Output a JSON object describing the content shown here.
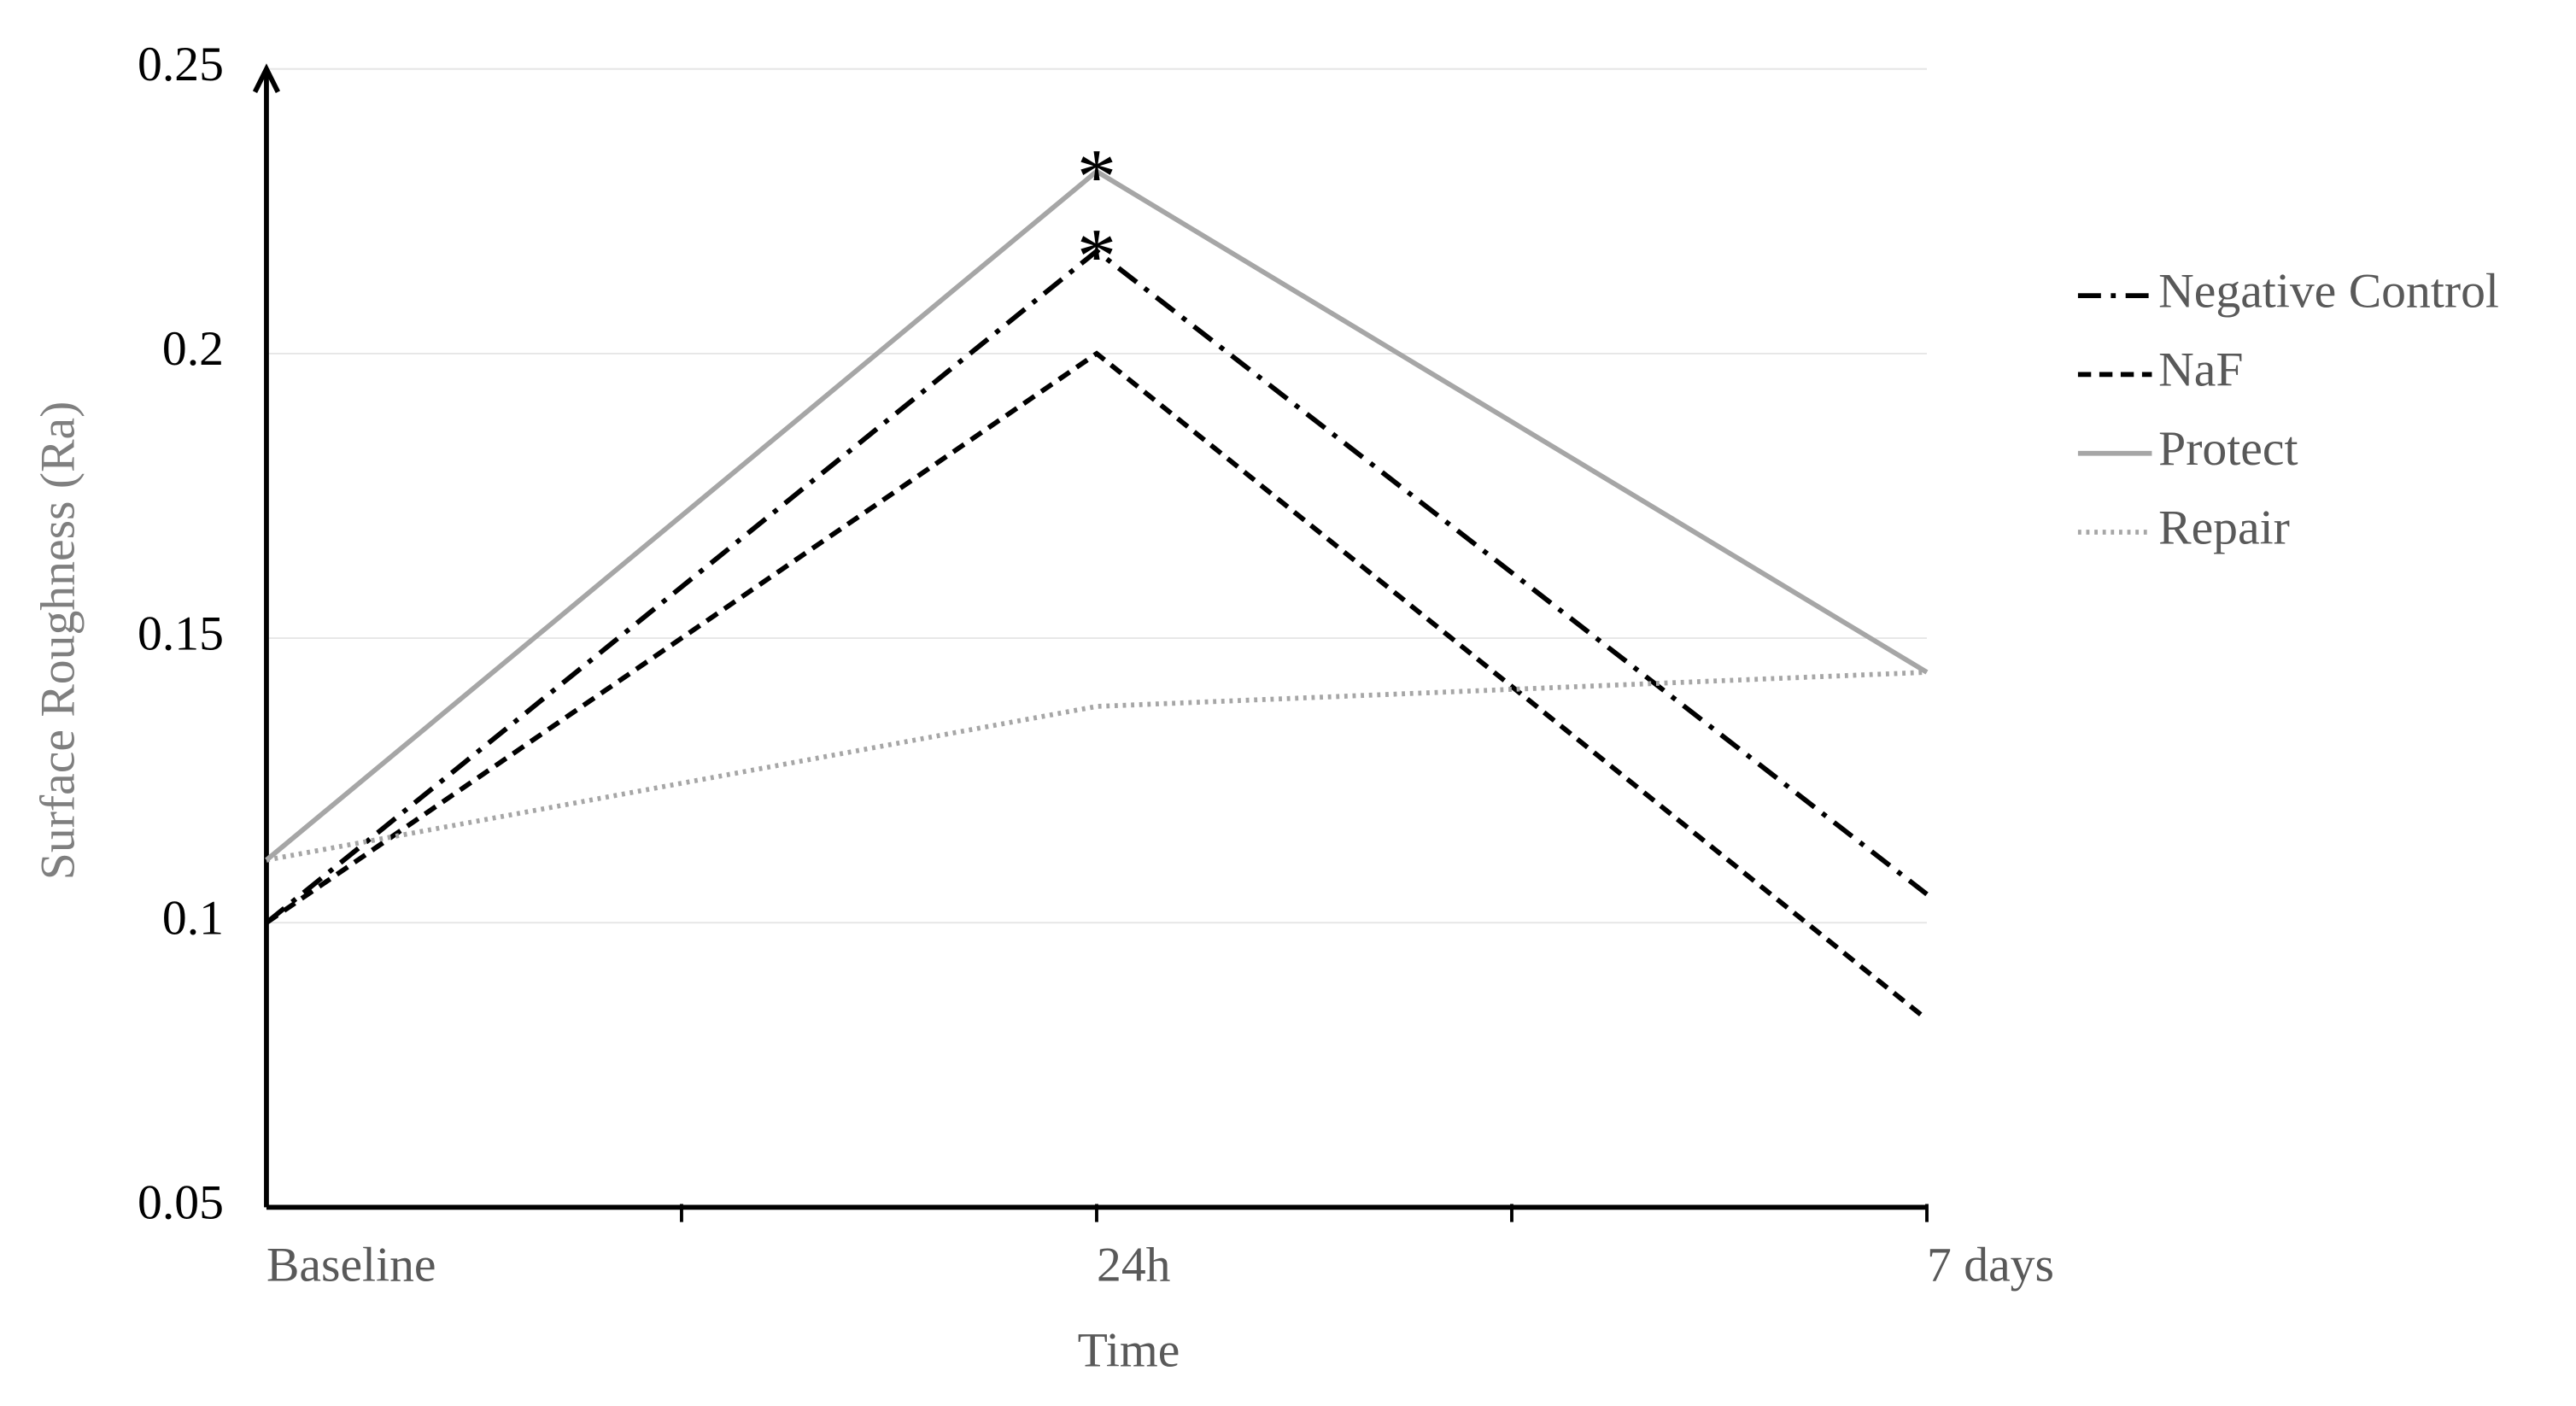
{
  "chart_data": {
    "type": "line",
    "x_label": "Time",
    "y_label": "Surface Roughness (Ra)",
    "categories": [
      "Baseline",
      "24h",
      "7 days"
    ],
    "series": [
      {
        "name": "Negative Control",
        "color": "#000000",
        "dash": "dash-dot",
        "values": [
          0.1,
          0.218,
          0.105
        ]
      },
      {
        "name": "NaF",
        "color": "#000000",
        "dash": "dashed",
        "values": [
          0.1,
          0.2,
          0.083
        ]
      },
      {
        "name": "Protect",
        "color": "#a6a6a6",
        "dash": "solid",
        "values": [
          0.111,
          0.232,
          0.144
        ]
      },
      {
        "name": "Repair",
        "color": "#a6a6a6",
        "dash": "dotted",
        "values": [
          0.111,
          0.138,
          0.144
        ]
      }
    ],
    "annotations": [
      "*",
      "*"
    ],
    "ylim": [
      0.05,
      0.25
    ],
    "yticks": [
      0.05,
      0.1,
      0.15,
      0.2,
      0.25
    ],
    "grid": true,
    "legend": "right"
  }
}
